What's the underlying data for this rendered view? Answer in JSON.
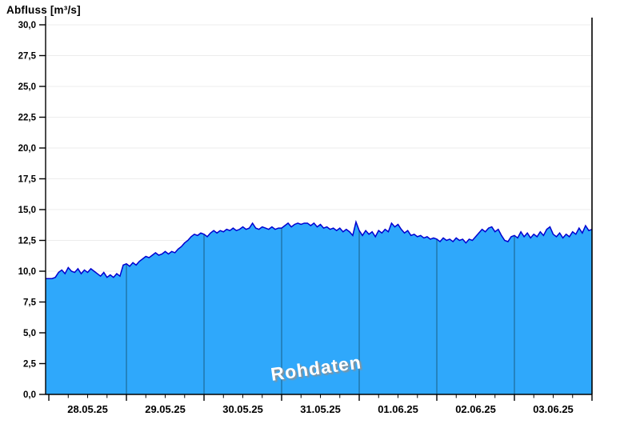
{
  "title": "Abfluss [m³/s]",
  "watermark": "Rohdaten",
  "colors": {
    "fill": "#2FA8FB",
    "line": "#0000D0",
    "day_line": "#1E6FA0",
    "grid": "#ECECEC",
    "axis": "#000000",
    "watermark_text": "#FFFFFF",
    "watermark_shadow": "#909090"
  },
  "chart_data": {
    "type": "area",
    "title": "Abfluss [m³/s]",
    "ylabel": "Abfluss [m³/s]",
    "xlabel": "",
    "ylim": [
      0,
      30
    ],
    "ytick_step": 2.5,
    "ytick_labels": [
      "0,0",
      "2,5",
      "5,0",
      "7,5",
      "10,0",
      "12,5",
      "15,0",
      "17,5",
      "20,0",
      "22,5",
      "25,0",
      "27,5",
      "30,0"
    ],
    "x_labels": [
      "28.05.25",
      "29.05.25",
      "30.05.25",
      "31.05.25",
      "01.06.25",
      "02.06.25",
      "03.06.25"
    ],
    "x_axis": {
      "start_offset_hours": 1,
      "hours_per_day": 24,
      "total_hours": 169,
      "minor_tick_hours": 6
    },
    "grid": "horizontal",
    "legend": "none",
    "watermark": "Rohdaten",
    "series_name": "Abfluss",
    "values_hourly": [
      9.4,
      9.4,
      9.4,
      9.5,
      9.9,
      10.1,
      9.8,
      10.3,
      10.0,
      9.9,
      10.2,
      9.8,
      10.1,
      9.9,
      10.2,
      10.0,
      9.8,
      9.6,
      9.9,
      9.5,
      9.7,
      9.5,
      9.8,
      9.6,
      10.5,
      10.6,
      10.4,
      10.7,
      10.5,
      10.8,
      11.0,
      11.2,
      11.1,
      11.3,
      11.5,
      11.3,
      11.4,
      11.6,
      11.4,
      11.6,
      11.5,
      11.8,
      12.0,
      12.3,
      12.5,
      12.8,
      13.0,
      12.9,
      13.1,
      13.0,
      12.8,
      13.1,
      13.3,
      13.1,
      13.3,
      13.2,
      13.4,
      13.3,
      13.5,
      13.3,
      13.4,
      13.6,
      13.4,
      13.5,
      13.9,
      13.5,
      13.4,
      13.6,
      13.5,
      13.4,
      13.6,
      13.4,
      13.5,
      13.5,
      13.7,
      13.9,
      13.6,
      13.8,
      13.9,
      13.8,
      13.9,
      13.9,
      13.7,
      13.9,
      13.6,
      13.8,
      13.5,
      13.6,
      13.4,
      13.5,
      13.3,
      13.5,
      13.2,
      13.4,
      13.2,
      12.9,
      14.0,
      13.3,
      12.9,
      13.3,
      13.0,
      13.2,
      12.8,
      13.3,
      13.1,
      13.4,
      13.2,
      13.9,
      13.6,
      13.8,
      13.4,
      13.1,
      13.3,
      12.9,
      13.0,
      12.8,
      12.9,
      12.7,
      12.8,
      12.6,
      12.7,
      12.6,
      12.4,
      12.7,
      12.5,
      12.6,
      12.4,
      12.7,
      12.5,
      12.6,
      12.3,
      12.6,
      12.5,
      12.8,
      13.1,
      13.4,
      13.2,
      13.5,
      13.6,
      13.2,
      13.4,
      12.9,
      12.5,
      12.4,
      12.8,
      12.9,
      12.7,
      13.2,
      12.8,
      13.1,
      12.7,
      13.0,
      12.8,
      13.2,
      12.9,
      13.4,
      13.6,
      13.0,
      12.8,
      13.1,
      12.7,
      13.0,
      12.8,
      13.2,
      13.0,
      13.5,
      13.1,
      13.7,
      13.3,
      13.4
    ]
  }
}
